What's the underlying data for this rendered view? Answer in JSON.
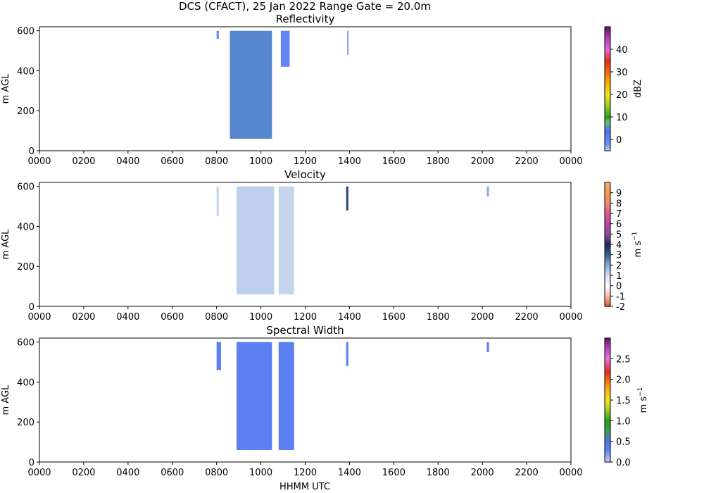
{
  "figure": {
    "suptitle": "DCS (CFACT), 25 Jan 2022 Range Gate = 20.0m",
    "xlabel": "HHMM UTC"
  },
  "chart_data": [
    {
      "type": "heatmap",
      "title": "Reflectivity",
      "xlabel": "",
      "ylabel": "m AGL",
      "x_ticks": [
        "0000",
        "0200",
        "0400",
        "0600",
        "0800",
        "1000",
        "1200",
        "1400",
        "1600",
        "1800",
        "2000",
        "2200",
        "0000"
      ],
      "xlim_hours": [
        0,
        24
      ],
      "ylim": [
        0,
        620
      ],
      "y_ticks": [
        0,
        200,
        400,
        600
      ],
      "colorbar": {
        "label": "dBZ",
        "label_sup": "",
        "range": [
          -5,
          50
        ],
        "ticks": [
          0,
          10,
          20,
          30,
          40
        ],
        "tick_labels": [
          "0",
          "10",
          "20",
          "30",
          "40"
        ]
      },
      "echo_regions": [
        {
          "t_start": 8.6,
          "t_end": 10.5,
          "z_bottom": 60,
          "z_top": 600,
          "value": 5
        },
        {
          "t_start": 8.0,
          "t_end": 8.1,
          "z_bottom": 560,
          "z_top": 600,
          "value": 0
        },
        {
          "t_start": 10.9,
          "t_end": 11.3,
          "z_bottom": 420,
          "z_top": 600,
          "value": 0
        },
        {
          "t_start": 13.9,
          "t_end": 13.95,
          "z_bottom": 480,
          "z_top": 600,
          "value": 0
        }
      ]
    },
    {
      "type": "heatmap",
      "title": "Velocity",
      "xlabel": "",
      "ylabel": "m AGL",
      "x_ticks": [
        "0000",
        "0200",
        "0400",
        "0600",
        "0800",
        "1000",
        "1200",
        "1400",
        "1600",
        "1800",
        "2000",
        "2200",
        "0000"
      ],
      "xlim_hours": [
        0,
        24
      ],
      "ylim": [
        0,
        620
      ],
      "y_ticks": [
        0,
        200,
        400,
        600
      ],
      "colorbar": {
        "label": "m s",
        "label_sup": "−1",
        "range": [
          -2,
          10
        ],
        "ticks": [
          -2,
          -1,
          0,
          1,
          2,
          3,
          4,
          5,
          6,
          7,
          8,
          9
        ],
        "tick_labels": [
          "-2",
          "-1",
          "0",
          "1",
          "2",
          "3",
          "4",
          "5",
          "6",
          "7",
          "8",
          "9"
        ]
      },
      "echo_regions": [
        {
          "t_start": 8.9,
          "t_end": 10.6,
          "z_bottom": 60,
          "z_top": 600,
          "value": 1.3
        },
        {
          "t_start": 8.0,
          "t_end": 8.1,
          "z_bottom": 450,
          "z_top": 600,
          "value": 1.2
        },
        {
          "t_start": 10.8,
          "t_end": 11.5,
          "z_bottom": 60,
          "z_top": 600,
          "value": 1.2
        },
        {
          "t_start": 13.85,
          "t_end": 13.95,
          "z_bottom": 480,
          "z_top": 600,
          "value": 3.5
        },
        {
          "t_start": 20.2,
          "t_end": 20.3,
          "z_bottom": 550,
          "z_top": 600,
          "value": 2
        }
      ]
    },
    {
      "type": "heatmap",
      "title": "Spectral Width",
      "xlabel": "HHMM UTC",
      "ylabel": "m AGL",
      "x_ticks": [
        "0000",
        "0200",
        "0400",
        "0600",
        "0800",
        "1000",
        "1200",
        "1400",
        "1600",
        "1800",
        "2000",
        "2200",
        "0000"
      ],
      "xlim_hours": [
        0,
        24
      ],
      "ylim": [
        0,
        620
      ],
      "y_ticks": [
        0,
        200,
        400,
        600
      ],
      "colorbar": {
        "label": "m s",
        "label_sup": "−1",
        "range": [
          0,
          3
        ],
        "ticks": [
          0,
          0.5,
          1.0,
          1.5,
          2.0,
          2.5
        ],
        "tick_labels": [
          "0.0",
          "0.5",
          "1.0",
          "1.5",
          "2.0",
          "2.5"
        ]
      },
      "echo_regions": [
        {
          "t_start": 8.9,
          "t_end": 10.5,
          "z_bottom": 60,
          "z_top": 600,
          "value": 0.3
        },
        {
          "t_start": 8.0,
          "t_end": 8.2,
          "z_bottom": 460,
          "z_top": 600,
          "value": 0.3
        },
        {
          "t_start": 10.8,
          "t_end": 11.5,
          "z_bottom": 60,
          "z_top": 600,
          "value": 0.3
        },
        {
          "t_start": 13.85,
          "t_end": 13.95,
          "z_bottom": 480,
          "z_top": 600,
          "value": 0.3
        },
        {
          "t_start": 20.2,
          "t_end": 20.3,
          "z_bottom": 550,
          "z_top": 600,
          "value": 0.3
        }
      ]
    }
  ]
}
